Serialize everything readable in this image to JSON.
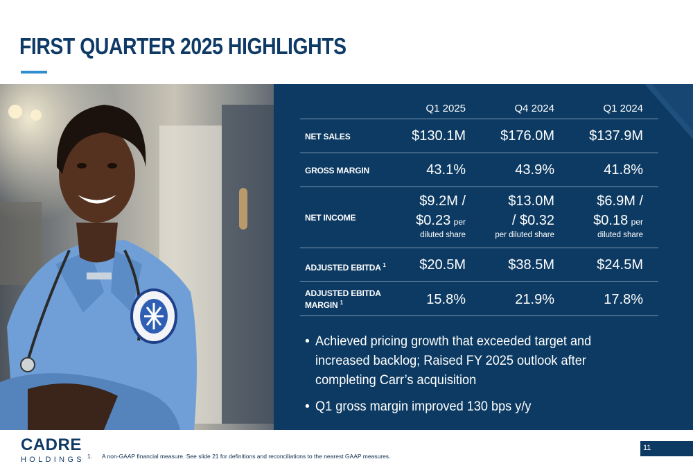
{
  "title": "FIRST QUARTER 2025 HIGHLIGHTS",
  "table": {
    "headers": [
      "",
      "Q1 2025",
      "Q4 2024",
      "Q1 2024"
    ],
    "rows": [
      {
        "label": "NET SALES",
        "values": [
          "$130.1M",
          "$176.0M",
          "$137.9M"
        ]
      },
      {
        "label": "GROSS MARGIN",
        "values": [
          "43.1%",
          "43.9%",
          "41.8%"
        ]
      },
      {
        "label": "NET INCOME",
        "cells": [
          {
            "line1": "$9.2M /",
            "line2": "$0.23",
            "line2_suffix": "per",
            "line3": "diluted share"
          },
          {
            "line1": "$13.0M",
            "line2": "/ $0.32",
            "line2_suffix": "",
            "line3": "per diluted share"
          },
          {
            "line1": "$6.9M /",
            "line2": "$0.18",
            "line2_suffix": "per",
            "line3": "diluted share"
          }
        ]
      },
      {
        "label": "ADJUSTED EBITDA",
        "sup": "1",
        "values": [
          "$20.5M",
          "$38.5M",
          "$24.5M"
        ]
      },
      {
        "label_line1": "ADJUSTED EBITDA",
        "label_line2": "MARGIN",
        "sup": "1",
        "values": [
          "15.8%",
          "21.9%",
          "17.8%"
        ]
      }
    ]
  },
  "bullets": [
    "Achieved pricing growth that exceeded target and increased backlog; Raised FY 2025 outlook after completing Carr’s acquisition",
    "Q1 gross margin improved 130 bps y/y"
  ],
  "logo": {
    "main": "CADRE",
    "sub": "HOLDINGS"
  },
  "footnote": {
    "num": "1.",
    "text": "A non-GAAP financial measure. See slide 21 for definitions and reconciliations to the nearest GAAP measures."
  },
  "page_number": "11",
  "colors": {
    "navy": "#0c3a62",
    "title": "#0f3a66",
    "accent": "#2f8ccf"
  }
}
